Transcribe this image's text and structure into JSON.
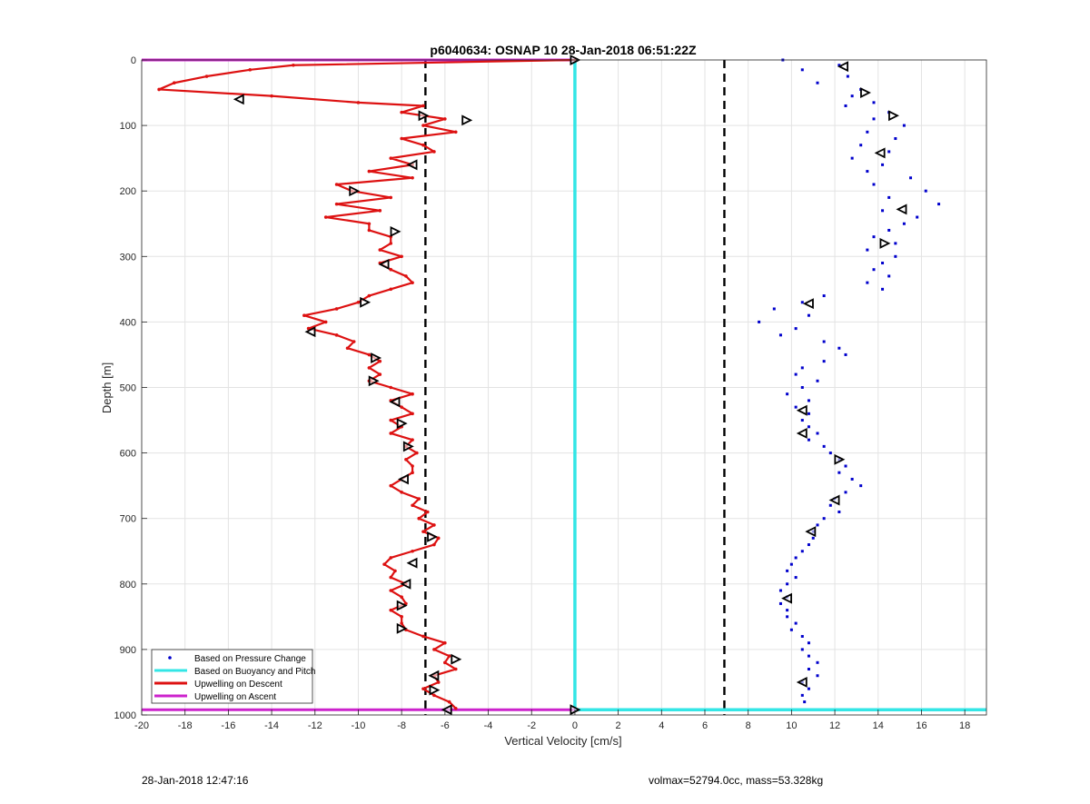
{
  "chart_data": {
    "type": "line",
    "title": "p6040634: OSNAP 10 28-Jan-2018 06:51:22Z",
    "xlabel": "Vertical Velocity [cm/s]",
    "ylabel": "Depth [m]",
    "xlim": [
      -20,
      19
    ],
    "ylim": [
      0,
      1000
    ],
    "y_reversed": true,
    "grid": true,
    "x_ticks": [
      -20,
      -18,
      -16,
      -14,
      -12,
      -10,
      -8,
      -6,
      -4,
      -2,
      0,
      2,
      4,
      6,
      8,
      10,
      12,
      14,
      16,
      18
    ],
    "y_ticks": [
      0,
      100,
      200,
      300,
      400,
      500,
      600,
      700,
      800,
      900,
      1000
    ],
    "reference_lines_x": [
      -6.9,
      6.9
    ],
    "legend": {
      "placement": "bottom-left",
      "entries": [
        {
          "label": "Based on Pressure Change",
          "color": "#0000cc",
          "style": "dot"
        },
        {
          "label": "Based on Buoyancy and Pitch",
          "color": "#33e6e6",
          "style": "line"
        },
        {
          "label": "Upwelling on Descent",
          "color": "#dd1111",
          "style": "line"
        },
        {
          "label": "Upwelling on Ascent",
          "color": "#cc22cc",
          "style": "line"
        }
      ]
    },
    "series": [
      {
        "name": "Upwelling on Descent",
        "color": "#dd1111",
        "depth": [
          0,
          8,
          15,
          25,
          35,
          45,
          55,
          65,
          70,
          80,
          90,
          100,
          110,
          120,
          130,
          140,
          150,
          160,
          170,
          180,
          190,
          200,
          210,
          220,
          230,
          240,
          250,
          260,
          270,
          280,
          290,
          300,
          310,
          320,
          330,
          340,
          350,
          360,
          370,
          380,
          390,
          400,
          410,
          420,
          430,
          440,
          450,
          460,
          470,
          480,
          490,
          500,
          510,
          520,
          530,
          540,
          550,
          560,
          570,
          580,
          590,
          600,
          610,
          620,
          630,
          640,
          650,
          660,
          670,
          680,
          690,
          700,
          710,
          720,
          730,
          740,
          750,
          760,
          770,
          780,
          790,
          800,
          810,
          820,
          830,
          840,
          850,
          860,
          870,
          880,
          890,
          900,
          910,
          920,
          930,
          940,
          950,
          960,
          970,
          980,
          990
        ],
        "velocity": [
          0,
          -13,
          -15,
          -17,
          -18.5,
          -19.2,
          -14,
          -10,
          -7,
          -8,
          -6,
          -7,
          -5.5,
          -8,
          -7,
          -6.5,
          -8.5,
          -7.5,
          -9.5,
          -7.5,
          -11,
          -10.3,
          -8.5,
          -11,
          -9,
          -11.5,
          -9.5,
          -9.5,
          -8.5,
          -8.5,
          -9,
          -8,
          -9,
          -8.5,
          -7.8,
          -7.5,
          -8.5,
          -9.5,
          -10,
          -11,
          -12.5,
          -11.5,
          -12.3,
          -11,
          -10.2,
          -10.5,
          -9.5,
          -9,
          -9.5,
          -9,
          -9.5,
          -8.5,
          -7.5,
          -8.5,
          -8,
          -7.5,
          -8.5,
          -8,
          -8.5,
          -7.5,
          -7.8,
          -7.3,
          -7.8,
          -7.5,
          -7.5,
          -8,
          -8.5,
          -8,
          -7.2,
          -7.5,
          -6.8,
          -7.2,
          -6.5,
          -7,
          -6.3,
          -6.5,
          -7.5,
          -8.5,
          -8.8,
          -8.3,
          -8.5,
          -7.8,
          -8.5,
          -8,
          -7.8,
          -8.5,
          -8,
          -8,
          -7.8,
          -7,
          -6,
          -6.5,
          -5.8,
          -6,
          -5.5,
          -6.5,
          -6.3,
          -7,
          -6.5,
          -5.8,
          -5.5
        ]
      },
      {
        "name": "Based on Pressure Change",
        "color": "#0000cc",
        "depth": [
          0,
          8,
          15,
          25,
          35,
          45,
          55,
          65,
          70,
          80,
          90,
          100,
          110,
          120,
          130,
          140,
          150,
          160,
          170,
          180,
          190,
          200,
          210,
          220,
          230,
          240,
          250,
          260,
          270,
          280,
          290,
          300,
          310,
          320,
          330,
          340,
          350,
          360,
          370,
          380,
          390,
          400,
          410,
          420,
          430,
          440,
          450,
          460,
          470,
          480,
          490,
          500,
          510,
          520,
          530,
          540,
          550,
          560,
          570,
          580,
          590,
          600,
          610,
          620,
          630,
          640,
          650,
          660,
          670,
          680,
          690,
          700,
          710,
          720,
          730,
          740,
          750,
          760,
          770,
          780,
          790,
          800,
          810,
          820,
          830,
          840,
          850,
          860,
          870,
          880,
          890,
          900,
          910,
          920,
          930,
          940,
          950,
          960,
          970,
          980
        ],
        "velocity": [
          9.6,
          12.2,
          10.5,
          12.6,
          11.2,
          13.2,
          12.8,
          13.8,
          12.5,
          14.5,
          13.8,
          15.2,
          13.5,
          14.8,
          13.2,
          14.5,
          12.8,
          14.2,
          13.5,
          15.5,
          13.8,
          16.2,
          14.5,
          16.8,
          14.2,
          15.8,
          15.2,
          14.5,
          13.8,
          14.8,
          13.5,
          14.8,
          14.2,
          13.8,
          14.5,
          13.5,
          14.2,
          11.5,
          10.5,
          9.2,
          10.8,
          8.5,
          10.2,
          9.5,
          11.5,
          12.2,
          12.5,
          11.5,
          10.5,
          10.2,
          11.2,
          10.5,
          9.8,
          10.8,
          10.2,
          10.8,
          10.5,
          10.8,
          11.2,
          10.8,
          11.5,
          11.8,
          12.2,
          12.5,
          12.2,
          12.8,
          13.2,
          12.5,
          12,
          11.8,
          12.2,
          11.5,
          11.2,
          11,
          11,
          10.8,
          10.5,
          10.2,
          10,
          9.8,
          10.2,
          9.8,
          9.5,
          9.8,
          9.5,
          9.8,
          9.8,
          10.2,
          10,
          10.5,
          10.8,
          10.5,
          10.8,
          11.2,
          10.8,
          11.2,
          10.5,
          10.8,
          10.5,
          10.6
        ]
      }
    ],
    "buoyancy_line": {
      "name": "Based on Buoyancy and Pitch",
      "color": "#33e6e6",
      "x_value": 0,
      "bottom_depth": 992
    },
    "ascent_line": {
      "name": "Upwelling on Ascent",
      "color": "#cc22cc",
      "top_depth": 0,
      "bottom_depth": 992
    },
    "triangle_markers": [
      {
        "depth": 0,
        "velocity": 0,
        "dir": "right"
      },
      {
        "depth": 10,
        "velocity": 12.4,
        "dir": "left"
      },
      {
        "depth": 50,
        "velocity": 13.4,
        "dir": "right"
      },
      {
        "depth": 60,
        "velocity": -15.5,
        "dir": "left"
      },
      {
        "depth": 85,
        "velocity": -7,
        "dir": "right"
      },
      {
        "depth": 85,
        "velocity": 14.7,
        "dir": "right"
      },
      {
        "depth": 92,
        "velocity": -5,
        "dir": "right"
      },
      {
        "depth": 142,
        "velocity": 14.1,
        "dir": "left"
      },
      {
        "depth": 160,
        "velocity": -7.5,
        "dir": "left"
      },
      {
        "depth": 200,
        "velocity": -10.2,
        "dir": "right"
      },
      {
        "depth": 228,
        "velocity": 15.1,
        "dir": "left"
      },
      {
        "depth": 262,
        "velocity": -8.3,
        "dir": "right"
      },
      {
        "depth": 280,
        "velocity": 14.3,
        "dir": "right"
      },
      {
        "depth": 312,
        "velocity": -8.8,
        "dir": "left"
      },
      {
        "depth": 370,
        "velocity": -9.7,
        "dir": "right"
      },
      {
        "depth": 372,
        "velocity": 10.8,
        "dir": "left"
      },
      {
        "depth": 415,
        "velocity": -12.2,
        "dir": "left"
      },
      {
        "depth": 455,
        "velocity": -9.2,
        "dir": "right"
      },
      {
        "depth": 490,
        "velocity": -9.3,
        "dir": "right"
      },
      {
        "depth": 522,
        "velocity": -8.3,
        "dir": "left"
      },
      {
        "depth": 535,
        "velocity": 10.5,
        "dir": "left"
      },
      {
        "depth": 555,
        "velocity": -8,
        "dir": "right"
      },
      {
        "depth": 570,
        "velocity": 10.5,
        "dir": "left"
      },
      {
        "depth": 590,
        "velocity": -7.7,
        "dir": "right"
      },
      {
        "depth": 610,
        "velocity": 12.2,
        "dir": "right"
      },
      {
        "depth": 640,
        "velocity": -7.9,
        "dir": "left"
      },
      {
        "depth": 672,
        "velocity": 12,
        "dir": "left"
      },
      {
        "depth": 720,
        "velocity": 10.9,
        "dir": "left"
      },
      {
        "depth": 728,
        "velocity": -6.6,
        "dir": "right"
      },
      {
        "depth": 768,
        "velocity": -7.5,
        "dir": "left"
      },
      {
        "depth": 800,
        "velocity": -7.8,
        "dir": "left"
      },
      {
        "depth": 822,
        "velocity": 9.8,
        "dir": "left"
      },
      {
        "depth": 833,
        "velocity": -8,
        "dir": "right"
      },
      {
        "depth": 868,
        "velocity": -8,
        "dir": "right"
      },
      {
        "depth": 915,
        "velocity": -5.5,
        "dir": "right"
      },
      {
        "depth": 940,
        "velocity": -6.5,
        "dir": "left"
      },
      {
        "depth": 950,
        "velocity": 10.5,
        "dir": "left"
      },
      {
        "depth": 962,
        "velocity": -6.5,
        "dir": "right"
      },
      {
        "depth": 992,
        "velocity": -5.9,
        "dir": "left"
      },
      {
        "depth": 992,
        "velocity": 0,
        "dir": "right"
      }
    ]
  },
  "footer": {
    "timestamp": "28-Jan-2018 12:47:16",
    "vol_mass": "volmax=52794.0cc, mass=53.328kg"
  }
}
